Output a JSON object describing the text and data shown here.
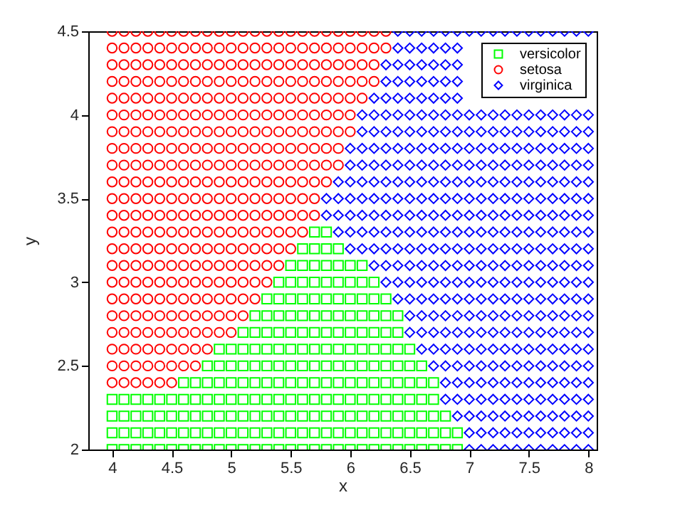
{
  "chart_data": {
    "type": "scatter",
    "xlabel": "x",
    "ylabel": "y",
    "xlim": [
      3.8,
      8.07
    ],
    "ylim": [
      2,
      4.5
    ],
    "xticks": [
      4,
      4.5,
      5,
      5.5,
      6,
      6.5,
      7,
      7.5,
      8
    ],
    "yticks": [
      2,
      2.5,
      3,
      3.5,
      4,
      4.5
    ],
    "legend": "top right",
    "series": [
      {
        "name": "versicolor",
        "color": "#00ff00",
        "marker": "square",
        "x": [
          5.7,
          5.8,
          5.6,
          5.7,
          5.8,
          5.9,
          5.5,
          5.6,
          5.7,
          5.8,
          5.9,
          6,
          6.1,
          5.4,
          5.5,
          5.6,
          5.7,
          5.8,
          5.9,
          6,
          6.1,
          6.2,
          5.3,
          5.4,
          5.5,
          5.6,
          5.7,
          5.8,
          5.9,
          6,
          6.1,
          6.2,
          6.3,
          5.2,
          5.3,
          5.4,
          5.5,
          5.6,
          5.7,
          5.8,
          5.9,
          6,
          6.1,
          6.2,
          6.3,
          6.4,
          5.1,
          5.2,
          5.3,
          5.4,
          5.5,
          5.6,
          5.7,
          5.8,
          5.9,
          6,
          6.1,
          6.2,
          6.3,
          6.4,
          4.9,
          5,
          5.1,
          5.2,
          5.3,
          5.4,
          5.5,
          5.6,
          5.7,
          5.8,
          5.9,
          6,
          6.1,
          6.2,
          6.3,
          6.4,
          6.5,
          4.8,
          4.9,
          5,
          5.1,
          5.2,
          5.3,
          5.4,
          5.5,
          5.6,
          5.7,
          5.8,
          5.9,
          6,
          6.1,
          6.2,
          6.3,
          6.4,
          6.5,
          6.6,
          4.6,
          4.7,
          4.8,
          4.9,
          5,
          5.1,
          5.2,
          5.3,
          5.4,
          5.5,
          5.6,
          5.7,
          5.8,
          5.9,
          6,
          6.1,
          6.2,
          6.3,
          6.4,
          6.5,
          6.6,
          6.7,
          4,
          4.1,
          4.2,
          4.3,
          4.4,
          4.5,
          4.6,
          4.7,
          4.8,
          4.9,
          5,
          5.1,
          5.2,
          5.3,
          5.4,
          5.5,
          5.6,
          5.7,
          5.8,
          5.9,
          6,
          6.1,
          6.2,
          6.3,
          6.4,
          6.5,
          6.6,
          6.7,
          4,
          4.1,
          4.2,
          4.3,
          4.4,
          4.5,
          4.6,
          4.7,
          4.8,
          4.9,
          5,
          5.1,
          5.2,
          5.3,
          5.4,
          5.5,
          5.6,
          5.7,
          5.8,
          5.9,
          6,
          6.1,
          6.2,
          6.3,
          6.4,
          6.5,
          6.6,
          6.7,
          6.8,
          4,
          4.1,
          4.2,
          4.3,
          4.4,
          4.5,
          4.6,
          4.7,
          4.8,
          4.9,
          5,
          5.1,
          5.2,
          5.3,
          5.4,
          5.5,
          5.6,
          5.7,
          5.8,
          5.9,
          6,
          6.1,
          6.2,
          6.3,
          6.4,
          6.5,
          6.6,
          6.7,
          6.8,
          6.9,
          4,
          4.1,
          4.2,
          4.3,
          4.4,
          4.5,
          4.6,
          4.7,
          4.8,
          4.9,
          5,
          5.1,
          5.2,
          5.3,
          5.4,
          5.5,
          5.6,
          5.7,
          5.8,
          5.9,
          6,
          6.1,
          6.2,
          6.3,
          6.4,
          6.5,
          6.6,
          6.7,
          6.8,
          6.9
        ],
        "values": [
          3.3,
          3.3,
          3.2,
          3.2,
          3.2,
          3.2,
          3.1,
          3.1,
          3.1,
          3.1,
          3.1,
          3.1,
          3.1,
          3,
          3,
          3,
          3,
          3,
          3,
          3,
          3,
          3,
          2.9,
          2.9,
          2.9,
          2.9,
          2.9,
          2.9,
          2.9,
          2.9,
          2.9,
          2.9,
          2.9,
          2.8,
          2.8,
          2.8,
          2.8,
          2.8,
          2.8,
          2.8,
          2.8,
          2.8,
          2.8,
          2.8,
          2.8,
          2.8,
          2.7,
          2.7,
          2.7,
          2.7,
          2.7,
          2.7,
          2.7,
          2.7,
          2.7,
          2.7,
          2.7,
          2.7,
          2.7,
          2.7,
          2.6,
          2.6,
          2.6,
          2.6,
          2.6,
          2.6,
          2.6,
          2.6,
          2.6,
          2.6,
          2.6,
          2.6,
          2.6,
          2.6,
          2.6,
          2.6,
          2.6,
          2.5,
          2.5,
          2.5,
          2.5,
          2.5,
          2.5,
          2.5,
          2.5,
          2.5,
          2.5,
          2.5,
          2.5,
          2.5,
          2.5,
          2.5,
          2.5,
          2.5,
          2.5,
          2.5,
          2.4,
          2.4,
          2.4,
          2.4,
          2.4,
          2.4,
          2.4,
          2.4,
          2.4,
          2.4,
          2.4,
          2.4,
          2.4,
          2.4,
          2.4,
          2.4,
          2.4,
          2.4,
          2.4,
          2.4,
          2.4,
          2.4,
          2.3,
          2.3,
          2.3,
          2.3,
          2.3,
          2.3,
          2.3,
          2.3,
          2.3,
          2.3,
          2.3,
          2.3,
          2.3,
          2.3,
          2.3,
          2.3,
          2.3,
          2.3,
          2.3,
          2.3,
          2.3,
          2.3,
          2.3,
          2.3,
          2.3,
          2.3,
          2.3,
          2.3,
          2.2,
          2.2,
          2.2,
          2.2,
          2.2,
          2.2,
          2.2,
          2.2,
          2.2,
          2.2,
          2.2,
          2.2,
          2.2,
          2.2,
          2.2,
          2.2,
          2.2,
          2.2,
          2.2,
          2.2,
          2.2,
          2.2,
          2.2,
          2.2,
          2.2,
          2.2,
          2.2,
          2.2,
          2.2,
          2.1,
          2.1,
          2.1,
          2.1,
          2.1,
          2.1,
          2.1,
          2.1,
          2.1,
          2.1,
          2.1,
          2.1,
          2.1,
          2.1,
          2.1,
          2.1,
          2.1,
          2.1,
          2.1,
          2.1,
          2.1,
          2.1,
          2.1,
          2.1,
          2.1,
          2.1,
          2.1,
          2.1,
          2.1,
          2.1,
          2,
          2,
          2,
          2,
          2,
          2,
          2,
          2,
          2,
          2,
          2,
          2,
          2,
          2,
          2,
          2,
          2,
          2,
          2,
          2,
          2,
          2,
          2,
          2,
          2,
          2,
          2,
          2,
          2,
          2
        ]
      },
      {
        "name": "setosa",
        "color": "#ff0000",
        "marker": "circle",
        "x": [
          4,
          4.1,
          4.2,
          4.3,
          4.4,
          4.5,
          4.6,
          4.7,
          4.8,
          4.9,
          5,
          5.1,
          5.2,
          5.3,
          5.4,
          5.5,
          5.6,
          5.7,
          5.8,
          5.9,
          6,
          6.1,
          6.2,
          6.3,
          4,
          4.1,
          4.2,
          4.3,
          4.4,
          4.5,
          4.6,
          4.7,
          4.8,
          4.9,
          5,
          5.1,
          5.2,
          5.3,
          5.4,
          5.5,
          5.6,
          5.7,
          5.8,
          5.9,
          6,
          6.1,
          6.2,
          6.3,
          4,
          4.1,
          4.2,
          4.3,
          4.4,
          4.5,
          4.6,
          4.7,
          4.8,
          4.9,
          5,
          5.1,
          5.2,
          5.3,
          5.4,
          5.5,
          5.6,
          5.7,
          5.8,
          5.9,
          6,
          6.1,
          6.2,
          4,
          4.1,
          4.2,
          4.3,
          4.4,
          4.5,
          4.6,
          4.7,
          4.8,
          4.9,
          5,
          5.1,
          5.2,
          5.3,
          5.4,
          5.5,
          5.6,
          5.7,
          5.8,
          5.9,
          6,
          6.1,
          6.2,
          4,
          4.1,
          4.2,
          4.3,
          4.4,
          4.5,
          4.6,
          4.7,
          4.8,
          4.9,
          5,
          5.1,
          5.2,
          5.3,
          5.4,
          5.5,
          5.6,
          5.7,
          5.8,
          5.9,
          6,
          6.1,
          4,
          4.1,
          4.2,
          4.3,
          4.4,
          4.5,
          4.6,
          4.7,
          4.8,
          4.9,
          5,
          5.1,
          5.2,
          5.3,
          5.4,
          5.5,
          5.6,
          5.7,
          5.8,
          5.9,
          6,
          4,
          4.1,
          4.2,
          4.3,
          4.4,
          4.5,
          4.6,
          4.7,
          4.8,
          4.9,
          5,
          5.1,
          5.2,
          5.3,
          5.4,
          5.5,
          5.6,
          5.7,
          5.8,
          5.9,
          6,
          4,
          4.1,
          4.2,
          4.3,
          4.4,
          4.5,
          4.6,
          4.7,
          4.8,
          4.9,
          5,
          5.1,
          5.2,
          5.3,
          5.4,
          5.5,
          5.6,
          5.7,
          5.8,
          5.9,
          4,
          4.1,
          4.2,
          4.3,
          4.4,
          4.5,
          4.6,
          4.7,
          4.8,
          4.9,
          5,
          5.1,
          5.2,
          5.3,
          5.4,
          5.5,
          5.6,
          5.7,
          5.8,
          5.9,
          4,
          4.1,
          4.2,
          4.3,
          4.4,
          4.5,
          4.6,
          4.7,
          4.8,
          4.9,
          5,
          5.1,
          5.2,
          5.3,
          5.4,
          5.5,
          5.6,
          5.7,
          5.8,
          4,
          4.1,
          4.2,
          4.3,
          4.4,
          4.5,
          4.6,
          4.7,
          4.8,
          4.9,
          5,
          5.1,
          5.2,
          5.3,
          5.4,
          5.5,
          5.6,
          5.7,
          4,
          4.1,
          4.2,
          4.3,
          4.4,
          4.5,
          4.6,
          4.7,
          4.8,
          4.9,
          5,
          5.1,
          5.2,
          5.3,
          5.4,
          5.5,
          5.6,
          5.7,
          4,
          4.1,
          4.2,
          4.3,
          4.4,
          4.5,
          4.6,
          4.7,
          4.8,
          4.9,
          5,
          5.1,
          5.2,
          5.3,
          5.4,
          5.5,
          5.6,
          4,
          4.1,
          4.2,
          4.3,
          4.4,
          4.5,
          4.6,
          4.7,
          4.8,
          4.9,
          5,
          5.1,
          5.2,
          5.3,
          5.4,
          5.5,
          4,
          4.1,
          4.2,
          4.3,
          4.4,
          4.5,
          4.6,
          4.7,
          4.8,
          4.9,
          5,
          5.1,
          5.2,
          5.3,
          5.4,
          4,
          4.1,
          4.2,
          4.3,
          4.4,
          4.5,
          4.6,
          4.7,
          4.8,
          4.9,
          5,
          5.1,
          5.2,
          5.3,
          4,
          4.1,
          4.2,
          4.3,
          4.4,
          4.5,
          4.6,
          4.7,
          4.8,
          4.9,
          5,
          5.1,
          5.2,
          4,
          4.1,
          4.2,
          4.3,
          4.4,
          4.5,
          4.6,
          4.7,
          4.8,
          4.9,
          5,
          5.1,
          4,
          4.1,
          4.2,
          4.3,
          4.4,
          4.5,
          4.6,
          4.7,
          4.8,
          4.9,
          5,
          4,
          4.1,
          4.2,
          4.3,
          4.4,
          4.5,
          4.6,
          4.7,
          4.8,
          4,
          4.1,
          4.2,
          4.3,
          4.4,
          4.5,
          4.6,
          4.7,
          4,
          4.1,
          4.2,
          4.3,
          4.4,
          4.5
        ],
        "values": [
          4.5,
          4.5,
          4.5,
          4.5,
          4.5,
          4.5,
          4.5,
          4.5,
          4.5,
          4.5,
          4.5,
          4.5,
          4.5,
          4.5,
          4.5,
          4.5,
          4.5,
          4.5,
          4.5,
          4.5,
          4.5,
          4.5,
          4.5,
          4.5,
          4.4,
          4.4,
          4.4,
          4.4,
          4.4,
          4.4,
          4.4,
          4.4,
          4.4,
          4.4,
          4.4,
          4.4,
          4.4,
          4.4,
          4.4,
          4.4,
          4.4,
          4.4,
          4.4,
          4.4,
          4.4,
          4.4,
          4.4,
          4.4,
          4.3,
          4.3,
          4.3,
          4.3,
          4.3,
          4.3,
          4.3,
          4.3,
          4.3,
          4.3,
          4.3,
          4.3,
          4.3,
          4.3,
          4.3,
          4.3,
          4.3,
          4.3,
          4.3,
          4.3,
          4.3,
          4.3,
          4.3,
          4.2,
          4.2,
          4.2,
          4.2,
          4.2,
          4.2,
          4.2,
          4.2,
          4.2,
          4.2,
          4.2,
          4.2,
          4.2,
          4.2,
          4.2,
          4.2,
          4.2,
          4.2,
          4.2,
          4.2,
          4.2,
          4.2,
          4.2,
          4.1,
          4.1,
          4.1,
          4.1,
          4.1,
          4.1,
          4.1,
          4.1,
          4.1,
          4.1,
          4.1,
          4.1,
          4.1,
          4.1,
          4.1,
          4.1,
          4.1,
          4.1,
          4.1,
          4.1,
          4.1,
          4.1,
          4,
          4,
          4,
          4,
          4,
          4,
          4,
          4,
          4,
          4,
          4,
          4,
          4,
          4,
          4,
          4,
          4,
          4,
          4,
          4,
          4,
          3.9,
          3.9,
          3.9,
          3.9,
          3.9,
          3.9,
          3.9,
          3.9,
          3.9,
          3.9,
          3.9,
          3.9,
          3.9,
          3.9,
          3.9,
          3.9,
          3.9,
          3.9,
          3.9,
          3.9,
          3.9,
          3.8,
          3.8,
          3.8,
          3.8,
          3.8,
          3.8,
          3.8,
          3.8,
          3.8,
          3.8,
          3.8,
          3.8,
          3.8,
          3.8,
          3.8,
          3.8,
          3.8,
          3.8,
          3.8,
          3.8,
          3.7,
          3.7,
          3.7,
          3.7,
          3.7,
          3.7,
          3.7,
          3.7,
          3.7,
          3.7,
          3.7,
          3.7,
          3.7,
          3.7,
          3.7,
          3.7,
          3.7,
          3.7,
          3.7,
          3.7,
          3.6,
          3.6,
          3.6,
          3.6,
          3.6,
          3.6,
          3.6,
          3.6,
          3.6,
          3.6,
          3.6,
          3.6,
          3.6,
          3.6,
          3.6,
          3.6,
          3.6,
          3.6,
          3.6,
          3.5,
          3.5,
          3.5,
          3.5,
          3.5,
          3.5,
          3.5,
          3.5,
          3.5,
          3.5,
          3.5,
          3.5,
          3.5,
          3.5,
          3.5,
          3.5,
          3.5,
          3.5,
          3.4,
          3.4,
          3.4,
          3.4,
          3.4,
          3.4,
          3.4,
          3.4,
          3.4,
          3.4,
          3.4,
          3.4,
          3.4,
          3.4,
          3.4,
          3.4,
          3.4,
          3.4,
          3.3,
          3.3,
          3.3,
          3.3,
          3.3,
          3.3,
          3.3,
          3.3,
          3.3,
          3.3,
          3.3,
          3.3,
          3.3,
          3.3,
          3.3,
          3.3,
          3.3,
          3.2,
          3.2,
          3.2,
          3.2,
          3.2,
          3.2,
          3.2,
          3.2,
          3.2,
          3.2,
          3.2,
          3.2,
          3.2,
          3.2,
          3.2,
          3.2,
          3.1,
          3.1,
          3.1,
          3.1,
          3.1,
          3.1,
          3.1,
          3.1,
          3.1,
          3.1,
          3.1,
          3.1,
          3.1,
          3.1,
          3.1,
          3,
          3,
          3,
          3,
          3,
          3,
          3,
          3,
          3,
          3,
          3,
          3,
          3,
          3,
          2.9,
          2.9,
          2.9,
          2.9,
          2.9,
          2.9,
          2.9,
          2.9,
          2.9,
          2.9,
          2.9,
          2.9,
          2.9,
          2.8,
          2.8,
          2.8,
          2.8,
          2.8,
          2.8,
          2.8,
          2.8,
          2.8,
          2.8,
          2.8,
          2.8,
          2.7,
          2.7,
          2.7,
          2.7,
          2.7,
          2.7,
          2.7,
          2.7,
          2.7,
          2.7,
          2.7,
          2.6,
          2.6,
          2.6,
          2.6,
          2.6,
          2.6,
          2.6,
          2.6,
          2.6,
          2.5,
          2.5,
          2.5,
          2.5,
          2.5,
          2.5,
          2.5,
          2.5,
          2.4,
          2.4,
          2.4,
          2.4,
          2.4,
          2.4
        ]
      },
      {
        "name": "virginica",
        "color": "#0000ff",
        "marker": "diamond",
        "x": [
          6.4,
          6.5,
          6.6,
          6.7,
          6.8,
          6.9,
          7,
          7.1,
          7.2,
          7.3,
          7.4,
          7.5,
          7.6,
          7.7,
          7.8,
          7.9,
          8,
          6.4,
          6.5,
          6.6,
          6.7,
          6.8,
          6.9,
          6.3,
          6.4,
          6.5,
          6.6,
          6.7,
          6.8,
          6.9,
          6.3,
          6.4,
          6.5,
          6.6,
          6.7,
          6.8,
          6.9,
          6.2,
          6.3,
          6.4,
          6.5,
          6.6,
          6.7,
          6.8,
          6.9,
          6.1,
          6.2,
          6.3,
          6.4,
          6.5,
          6.6,
          6.7,
          6.8,
          6.9,
          7,
          7.1,
          7.2,
          7.3,
          7.4,
          7.5,
          7.6,
          7.7,
          7.8,
          7.9,
          8,
          6.1,
          6.2,
          6.3,
          6.4,
          6.5,
          6.6,
          6.7,
          6.8,
          6.9,
          7,
          7.1,
          7.2,
          7.3,
          7.4,
          7.5,
          7.6,
          7.7,
          7.8,
          7.9,
          8,
          6,
          6.1,
          6.2,
          6.3,
          6.4,
          6.5,
          6.6,
          6.7,
          6.8,
          6.9,
          7,
          7.1,
          7.2,
          7.3,
          7.4,
          7.5,
          7.6,
          7.7,
          7.8,
          7.9,
          8,
          6,
          6.1,
          6.2,
          6.3,
          6.4,
          6.5,
          6.6,
          6.7,
          6.8,
          6.9,
          7,
          7.1,
          7.2,
          7.3,
          7.4,
          7.5,
          7.6,
          7.7,
          7.8,
          7.9,
          8,
          5.9,
          6,
          6.1,
          6.2,
          6.3,
          6.4,
          6.5,
          6.6,
          6.7,
          6.8,
          6.9,
          7,
          7.1,
          7.2,
          7.3,
          7.4,
          7.5,
          7.6,
          7.7,
          7.8,
          7.9,
          8,
          5.8,
          5.9,
          6,
          6.1,
          6.2,
          6.3,
          6.4,
          6.5,
          6.6,
          6.7,
          6.8,
          6.9,
          7,
          7.1,
          7.2,
          7.3,
          7.4,
          7.5,
          7.6,
          7.7,
          7.8,
          7.9,
          8,
          5.8,
          5.9,
          6,
          6.1,
          6.2,
          6.3,
          6.4,
          6.5,
          6.6,
          6.7,
          6.8,
          6.9,
          7,
          7.1,
          7.2,
          7.3,
          7.4,
          7.5,
          7.6,
          7.7,
          7.8,
          7.9,
          8,
          5.9,
          6,
          6.1,
          6.2,
          6.3,
          6.4,
          6.5,
          6.6,
          6.7,
          6.8,
          6.9,
          7,
          7.1,
          7.2,
          7.3,
          7.4,
          7.5,
          7.6,
          7.7,
          7.8,
          7.9,
          8,
          6,
          6.1,
          6.2,
          6.3,
          6.4,
          6.5,
          6.6,
          6.7,
          6.8,
          6.9,
          7,
          7.1,
          7.2,
          7.3,
          7.4,
          7.5,
          7.6,
          7.7,
          7.8,
          7.9,
          8,
          6.2,
          6.3,
          6.4,
          6.5,
          6.6,
          6.7,
          6.8,
          6.9,
          7,
          7.1,
          7.2,
          7.3,
          7.4,
          7.5,
          7.6,
          7.7,
          7.8,
          7.9,
          8,
          6.3,
          6.4,
          6.5,
          6.6,
          6.7,
          6.8,
          6.9,
          7,
          7.1,
          7.2,
          7.3,
          7.4,
          7.5,
          7.6,
          7.7,
          7.8,
          7.9,
          8,
          6.4,
          6.5,
          6.6,
          6.7,
          6.8,
          6.9,
          7,
          7.1,
          7.2,
          7.3,
          7.4,
          7.5,
          7.6,
          7.7,
          7.8,
          7.9,
          8,
          6.5,
          6.6,
          6.7,
          6.8,
          6.9,
          7,
          7.1,
          7.2,
          7.3,
          7.4,
          7.5,
          7.6,
          7.7,
          7.8,
          7.9,
          8,
          6.5,
          6.6,
          6.7,
          6.8,
          6.9,
          7,
          7.1,
          7.2,
          7.3,
          7.4,
          7.5,
          7.6,
          7.7,
          7.8,
          7.9,
          8,
          6.6,
          6.7,
          6.8,
          6.9,
          7,
          7.1,
          7.2,
          7.3,
          7.4,
          7.5,
          7.6,
          7.7,
          7.8,
          7.9,
          8,
          6.7,
          6.8,
          6.9,
          7,
          7.1,
          7.2,
          7.3,
          7.4,
          7.5,
          7.6,
          7.7,
          7.8,
          7.9,
          8,
          6.8,
          6.9,
          7,
          7.1,
          7.2,
          7.3,
          7.4,
          7.5,
          7.6,
          7.7,
          7.8,
          7.9,
          8,
          6.8,
          6.9,
          7,
          7.1,
          7.2,
          7.3,
          7.4,
          7.5,
          7.6,
          7.7,
          7.8,
          7.9,
          8,
          6.9,
          7,
          7.1,
          7.2,
          7.3,
          7.4,
          7.5,
          7.6,
          7.7,
          7.8,
          7.9,
          8,
          7,
          7.1,
          7.2,
          7.3,
          7.4,
          7.5,
          7.6,
          7.7,
          7.8,
          7.9,
          8,
          7,
          7.1,
          7.2,
          7.3,
          7.4,
          7.5,
          7.6,
          7.7,
          7.8,
          7.9,
          8
        ],
        "values": [
          4.5,
          4.5,
          4.5,
          4.5,
          4.5,
          4.5,
          4.5,
          4.5,
          4.5,
          4.5,
          4.5,
          4.5,
          4.5,
          4.5,
          4.5,
          4.5,
          4.5,
          4.4,
          4.4,
          4.4,
          4.4,
          4.4,
          4.4,
          4.3,
          4.3,
          4.3,
          4.3,
          4.3,
          4.3,
          4.3,
          4.2,
          4.2,
          4.2,
          4.2,
          4.2,
          4.2,
          4.2,
          4.1,
          4.1,
          4.1,
          4.1,
          4.1,
          4.1,
          4.1,
          4.1,
          4,
          4,
          4,
          4,
          4,
          4,
          4,
          4,
          4,
          4,
          4,
          4,
          4,
          4,
          4,
          4,
          4,
          4,
          4,
          4,
          3.9,
          3.9,
          3.9,
          3.9,
          3.9,
          3.9,
          3.9,
          3.9,
          3.9,
          3.9,
          3.9,
          3.9,
          3.9,
          3.9,
          3.9,
          3.9,
          3.9,
          3.9,
          3.9,
          3.9,
          3.8,
          3.8,
          3.8,
          3.8,
          3.8,
          3.8,
          3.8,
          3.8,
          3.8,
          3.8,
          3.8,
          3.8,
          3.8,
          3.8,
          3.8,
          3.8,
          3.8,
          3.8,
          3.8,
          3.8,
          3.8,
          3.7,
          3.7,
          3.7,
          3.7,
          3.7,
          3.7,
          3.7,
          3.7,
          3.7,
          3.7,
          3.7,
          3.7,
          3.7,
          3.7,
          3.7,
          3.7,
          3.7,
          3.7,
          3.7,
          3.7,
          3.7,
          3.6,
          3.6,
          3.6,
          3.6,
          3.6,
          3.6,
          3.6,
          3.6,
          3.6,
          3.6,
          3.6,
          3.6,
          3.6,
          3.6,
          3.6,
          3.6,
          3.6,
          3.6,
          3.6,
          3.6,
          3.6,
          3.6,
          3.5,
          3.5,
          3.5,
          3.5,
          3.5,
          3.5,
          3.5,
          3.5,
          3.5,
          3.5,
          3.5,
          3.5,
          3.5,
          3.5,
          3.5,
          3.5,
          3.5,
          3.5,
          3.5,
          3.5,
          3.5,
          3.5,
          3.5,
          3.4,
          3.4,
          3.4,
          3.4,
          3.4,
          3.4,
          3.4,
          3.4,
          3.4,
          3.4,
          3.4,
          3.4,
          3.4,
          3.4,
          3.4,
          3.4,
          3.4,
          3.4,
          3.4,
          3.4,
          3.4,
          3.4,
          3.4,
          3.3,
          3.3,
          3.3,
          3.3,
          3.3,
          3.3,
          3.3,
          3.3,
          3.3,
          3.3,
          3.3,
          3.3,
          3.3,
          3.3,
          3.3,
          3.3,
          3.3,
          3.3,
          3.3,
          3.3,
          3.3,
          3.3,
          3.2,
          3.2,
          3.2,
          3.2,
          3.2,
          3.2,
          3.2,
          3.2,
          3.2,
          3.2,
          3.2,
          3.2,
          3.2,
          3.2,
          3.2,
          3.2,
          3.2,
          3.2,
          3.2,
          3.2,
          3.2,
          3.1,
          3.1,
          3.1,
          3.1,
          3.1,
          3.1,
          3.1,
          3.1,
          3.1,
          3.1,
          3.1,
          3.1,
          3.1,
          3.1,
          3.1,
          3.1,
          3.1,
          3.1,
          3.1,
          3,
          3,
          3,
          3,
          3,
          3,
          3,
          3,
          3,
          3,
          3,
          3,
          3,
          3,
          3,
          3,
          3,
          3,
          2.9,
          2.9,
          2.9,
          2.9,
          2.9,
          2.9,
          2.9,
          2.9,
          2.9,
          2.9,
          2.9,
          2.9,
          2.9,
          2.9,
          2.9,
          2.9,
          2.9,
          2.8,
          2.8,
          2.8,
          2.8,
          2.8,
          2.8,
          2.8,
          2.8,
          2.8,
          2.8,
          2.8,
          2.8,
          2.8,
          2.8,
          2.8,
          2.8,
          2.7,
          2.7,
          2.7,
          2.7,
          2.7,
          2.7,
          2.7,
          2.7,
          2.7,
          2.7,
          2.7,
          2.7,
          2.7,
          2.7,
          2.7,
          2.7,
          2.6,
          2.6,
          2.6,
          2.6,
          2.6,
          2.6,
          2.6,
          2.6,
          2.6,
          2.6,
          2.6,
          2.6,
          2.6,
          2.6,
          2.6,
          2.5,
          2.5,
          2.5,
          2.5,
          2.5,
          2.5,
          2.5,
          2.5,
          2.5,
          2.5,
          2.5,
          2.5,
          2.5,
          2.5,
          2.4,
          2.4,
          2.4,
          2.4,
          2.4,
          2.4,
          2.4,
          2.4,
          2.4,
          2.4,
          2.4,
          2.4,
          2.4,
          2.3,
          2.3,
          2.3,
          2.3,
          2.3,
          2.3,
          2.3,
          2.3,
          2.3,
          2.3,
          2.3,
          2.3,
          2.3,
          2.2,
          2.2,
          2.2,
          2.2,
          2.2,
          2.2,
          2.2,
          2.2,
          2.2,
          2.2,
          2.2,
          2.2,
          2.1,
          2.1,
          2.1,
          2.1,
          2.1,
          2.1,
          2.1,
          2.1,
          2.1,
          2.1,
          2.1,
          2,
          2,
          2,
          2,
          2,
          2,
          2,
          2,
          2,
          2,
          2
        ]
      }
    ]
  }
}
